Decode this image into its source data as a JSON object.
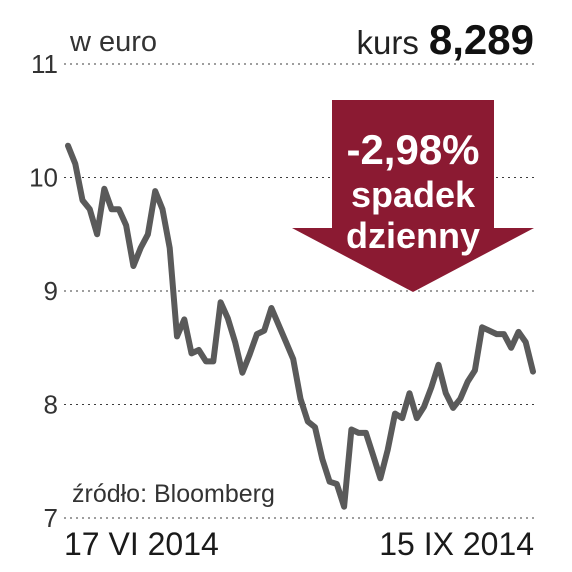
{
  "header": {
    "unit_label": "w euro",
    "kurs_label": "kurs",
    "kurs_value": "8,289"
  },
  "badge": {
    "change": "-2,98%",
    "line2": "spadek",
    "line3": "dzienny",
    "color": "#8b1a32"
  },
  "footer": {
    "source": "źródło: Bloomberg",
    "date_start": "17 VI 2014",
    "date_end": "15 IX 2014"
  },
  "chart_data": {
    "type": "line",
    "ylim": [
      7,
      11
    ],
    "yticks": [
      "7",
      "8",
      "9",
      "10",
      "11"
    ],
    "grid": true,
    "line_color": "#5a5a5a",
    "x_start_label": "17 VI 2014",
    "x_end_label": "15 IX 2014",
    "series": [
      {
        "values": [
          10.28,
          10.12,
          9.8,
          9.72,
          9.5,
          9.9,
          9.72,
          9.72,
          9.58,
          9.22,
          9.38,
          9.5,
          9.88,
          9.72,
          9.38,
          8.6,
          8.75,
          8.45,
          8.48,
          8.38,
          8.38,
          8.9,
          8.76,
          8.55,
          8.28,
          8.44,
          8.62,
          8.65,
          8.85,
          8.7,
          8.55,
          8.4,
          8.05,
          7.85,
          7.8,
          7.52,
          7.32,
          7.3,
          7.1,
          7.78,
          7.75,
          7.75,
          7.55,
          7.35,
          7.6,
          7.92,
          7.88,
          8.1,
          7.88,
          7.98,
          8.15,
          8.35,
          8.1,
          7.97,
          8.05,
          8.2,
          8.3,
          8.68,
          8.65,
          8.62,
          8.62,
          8.5,
          8.64,
          8.55,
          8.29
        ]
      }
    ]
  }
}
